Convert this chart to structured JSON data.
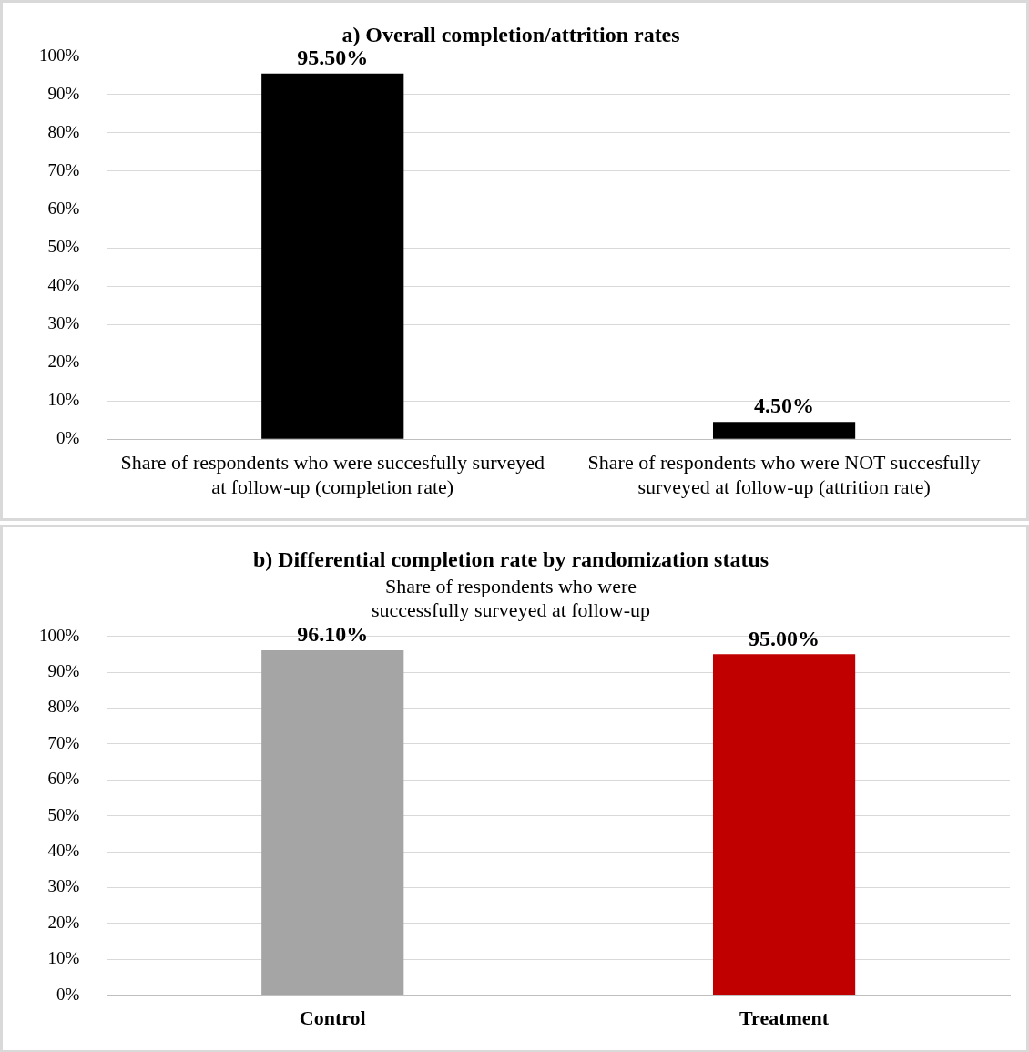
{
  "chart_data": [
    {
      "type": "bar",
      "title": "a) Overall completion/attrition rates",
      "categories": [
        "Share of respondents who were succesfully surveyed at follow-up (completion rate)",
        "Share of respondents who were NOT succesfully surveyed at follow-up (attrition rate)"
      ],
      "values": [
        95.5,
        4.5
      ],
      "colors": [
        "#000000",
        "#000000"
      ],
      "value_labels": [
        "95.50%",
        "4.50%"
      ],
      "ylim": [
        0,
        100
      ],
      "yticks": [
        {
          "value": 0,
          "label": "0%"
        },
        {
          "value": 10,
          "label": "10%"
        },
        {
          "value": 20,
          "label": "20%"
        },
        {
          "value": 30,
          "label": "30%"
        },
        {
          "value": 40,
          "label": "40%"
        },
        {
          "value": 50,
          "label": "50%"
        },
        {
          "value": 60,
          "label": "60%"
        },
        {
          "value": 70,
          "label": "70%"
        },
        {
          "value": 80,
          "label": "80%"
        },
        {
          "value": 90,
          "label": "90%"
        },
        {
          "value": 100,
          "label": "100%"
        }
      ],
      "grid": "y",
      "legend": false
    },
    {
      "type": "bar",
      "title": "b) Differential completion rate by randomization status",
      "subtitle": "Share of respondents who were successfully surveyed at follow-up",
      "categories": [
        "Control",
        "Treatment"
      ],
      "values": [
        96.1,
        95.0
      ],
      "colors": [
        "#a5a5a5",
        "#c00000"
      ],
      "value_labels": [
        "96.10%",
        "95.00%"
      ],
      "ylim": [
        0,
        100
      ],
      "yticks": [
        {
          "value": 0,
          "label": "0%"
        },
        {
          "value": 10,
          "label": "10%"
        },
        {
          "value": 20,
          "label": "20%"
        },
        {
          "value": 30,
          "label": "30%"
        },
        {
          "value": 40,
          "label": "40%"
        },
        {
          "value": 50,
          "label": "50%"
        },
        {
          "value": 60,
          "label": "60%"
        },
        {
          "value": 70,
          "label": "70%"
        },
        {
          "value": 80,
          "label": "80%"
        },
        {
          "value": 90,
          "label": "90%"
        },
        {
          "value": 100,
          "label": "100%"
        }
      ],
      "grid": "y",
      "legend": false
    }
  ]
}
